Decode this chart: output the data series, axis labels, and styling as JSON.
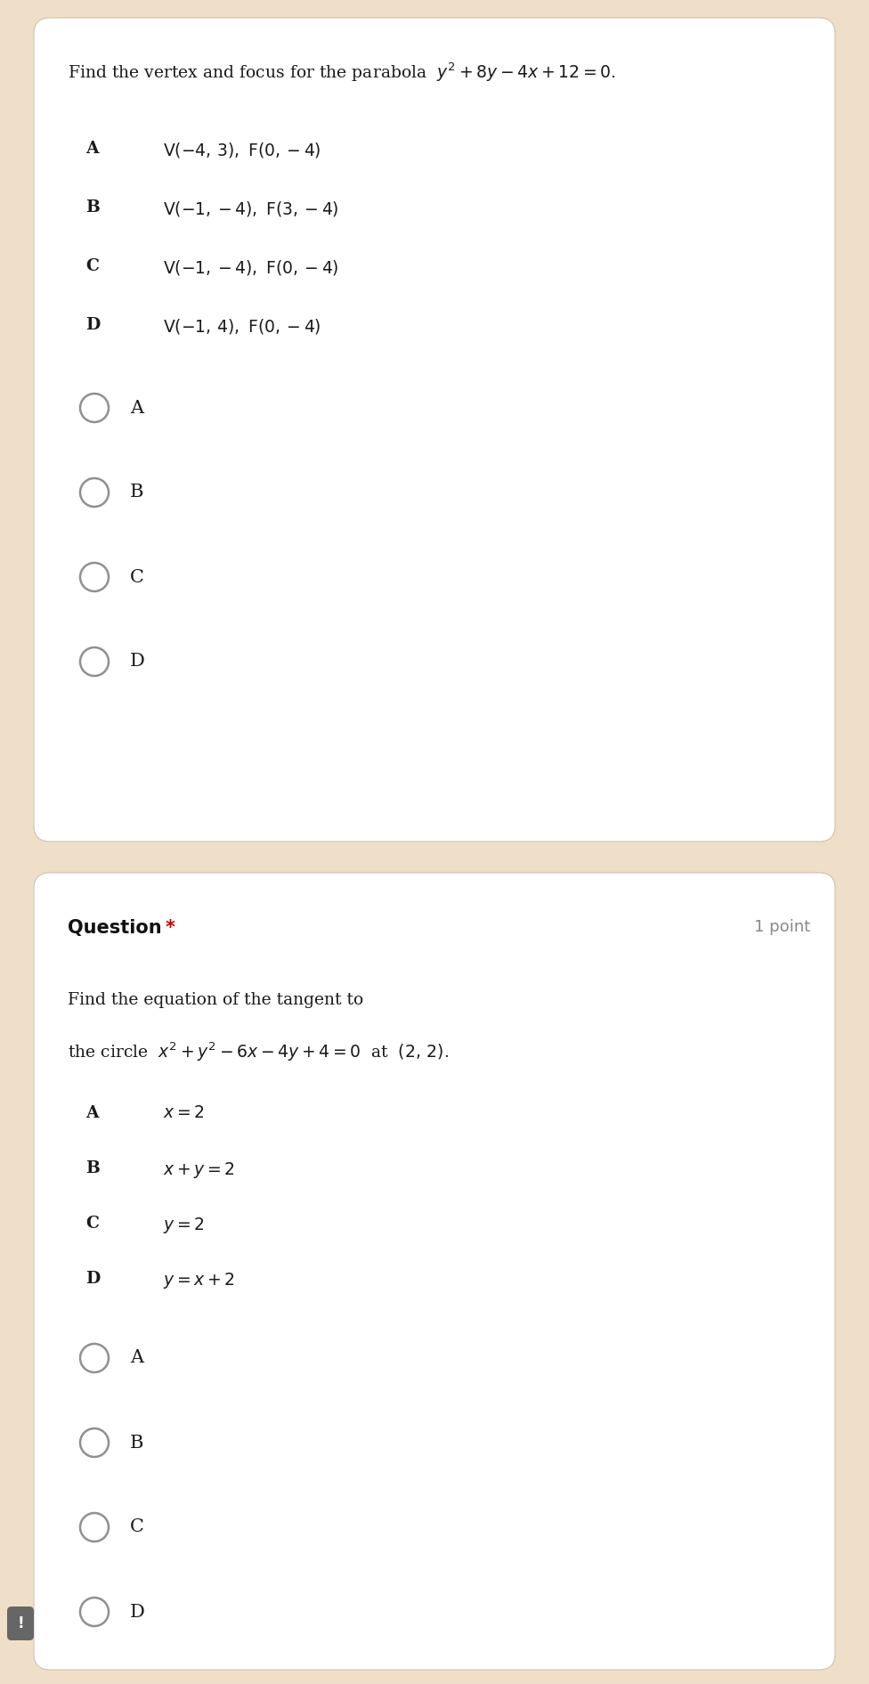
{
  "bg_color": "#f0dfc8",
  "card_color": "#ffffff",
  "q1_question_plain": "Find the vertex and focus for the parabola ",
  "q1_question_math": "$y^2+8y-4x+12=0$.",
  "q1_options": [
    [
      "A",
      "V(−4, 3), F(0,−4)"
    ],
    [
      "B",
      "V(−1,−4), F(3,−4)"
    ],
    [
      "C",
      "V(−1,−4), F(0,−4)"
    ],
    [
      "D",
      "V(−1, 4), F(0,−4)"
    ]
  ],
  "q1_radio_labels": [
    "A",
    "B",
    "C",
    "D"
  ],
  "q2_label": "Question",
  "q2_star": " *",
  "q2_points": "1 point",
  "q2_question_line1": "Find the equation of the tangent to",
  "q2_options": [
    [
      "A",
      "$x=2$"
    ],
    [
      "B",
      "$x+y=2$"
    ],
    [
      "C",
      "$y=2$"
    ],
    [
      "D",
      "$y=x+2$"
    ]
  ],
  "q2_radio_labels": [
    "A",
    "B",
    "C",
    "D"
  ],
  "font_size_q": 13.5,
  "font_size_opt_label": 13.5,
  "font_size_opt_text": 13.5,
  "font_size_radio_label": 15,
  "font_size_header": 15,
  "font_size_points": 13
}
